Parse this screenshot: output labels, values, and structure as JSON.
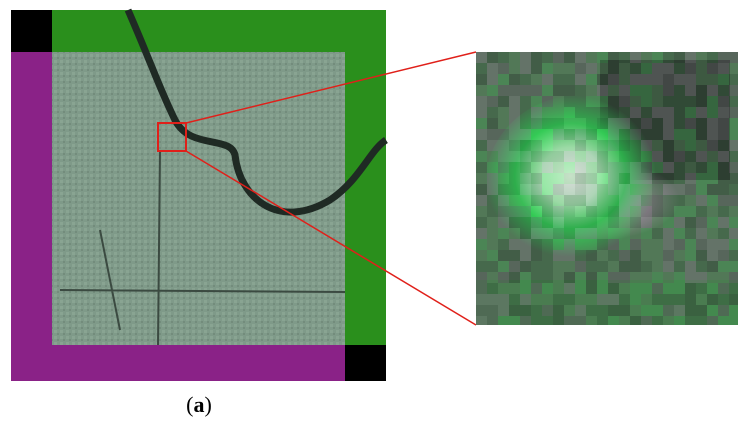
{
  "caption": {
    "parts": [
      "(",
      "a",
      ")"
    ]
  }
}
